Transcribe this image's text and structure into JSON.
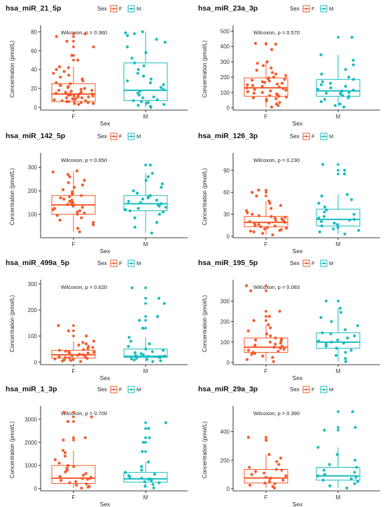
{
  "colors": {
    "F": "#F8592A",
    "M": "#18BCC0",
    "axis": "#000000",
    "text": "#222222"
  },
  "legend": {
    "title": "Sex",
    "items": [
      "F",
      "M"
    ]
  },
  "chart_data": [
    {
      "type": "box",
      "title": "hsa_miR_21_5p",
      "xlabel": "Sex",
      "ylabel": "Concentration (pmol/L)",
      "categories": [
        "F",
        "M"
      ],
      "annotation": "Wilcoxon, p = 0.360",
      "ylim": [
        -3,
        84
      ],
      "yticks": [
        "0",
        "20",
        "40",
        "60",
        "80"
      ],
      "ytick_values": [
        0,
        20,
        40,
        60,
        80
      ],
      "boxes": [
        {
          "name": "F",
          "whisker_low": 3,
          "q1": 6,
          "median": 14,
          "q3": 25,
          "whisker_high": 43,
          "outliers": [
            50,
            55,
            64,
            70,
            75,
            78
          ],
          "points": [
            3,
            4,
            4,
            5,
            5,
            6,
            6,
            7,
            7,
            8,
            8,
            9,
            9,
            10,
            10,
            11,
            11,
            12,
            12,
            13,
            13,
            13,
            14,
            14,
            14,
            15,
            15,
            16,
            16,
            17,
            18,
            18,
            19,
            20,
            21,
            22,
            23,
            24,
            25,
            26,
            28,
            30,
            32,
            34,
            36,
            38,
            40,
            42,
            43,
            50,
            55,
            64,
            70,
            75,
            78
          ]
        },
        {
          "name": "M",
          "whisker_low": 0,
          "q1": 7,
          "median": 18,
          "q3": 47,
          "whisker_high": 80,
          "outliers": [],
          "points": [
            0,
            1,
            2,
            3,
            4,
            5,
            6,
            7,
            8,
            10,
            11,
            13,
            15,
            17,
            19,
            21,
            24,
            26,
            28,
            30,
            33,
            36,
            40,
            44,
            47,
            52,
            58,
            64,
            69,
            72,
            76,
            78,
            80,
            79
          ]
        }
      ]
    },
    {
      "type": "box",
      "title": "hsa_miR_23a_3p",
      "xlabel": "Sex",
      "ylabel": "Concentration (pmol/L)",
      "categories": [
        "F",
        "M"
      ],
      "annotation": "Wilcoxon, p = 0.570",
      "ylim": [
        -15,
        520
      ],
      "yticks": [
        "0",
        "100",
        "200",
        "300",
        "400",
        "500"
      ],
      "ytick_values": [
        0,
        100,
        200,
        300,
        400,
        500
      ],
      "boxes": [
        {
          "name": "F",
          "whisker_low": 5,
          "q1": 75,
          "median": 130,
          "q3": 195,
          "whisker_high": 300,
          "outliers": [
            415,
            420
          ],
          "points": [
            5,
            15,
            25,
            35,
            45,
            55,
            60,
            65,
            70,
            75,
            80,
            85,
            90,
            95,
            100,
            105,
            110,
            115,
            120,
            125,
            130,
            135,
            140,
            145,
            150,
            155,
            160,
            165,
            170,
            175,
            180,
            185,
            190,
            195,
            200,
            210,
            220,
            230,
            245,
            260,
            275,
            290,
            300,
            380,
            415,
            420
          ]
        },
        {
          "name": "M",
          "whisker_low": 5,
          "q1": 75,
          "median": 110,
          "q3": 185,
          "whisker_high": 345,
          "outliers": [
            460
          ],
          "points": [
            5,
            15,
            25,
            40,
            55,
            65,
            75,
            80,
            90,
            95,
            100,
            105,
            110,
            115,
            120,
            130,
            140,
            150,
            160,
            170,
            185,
            200,
            220,
            250,
            280,
            310,
            345,
            460
          ]
        }
      ]
    },
    {
      "type": "box",
      "title": "hsa_miR_142_5p",
      "xlabel": "Sex",
      "ylabel": "Concentration (pmol/L)",
      "categories": [
        "F",
        "M"
      ],
      "annotation": "Wilcoxon, p = 0.650",
      "ylim": [
        0,
        350
      ],
      "yticks": [
        "100",
        "200",
        "300"
      ],
      "ytick_values": [
        100,
        200,
        300
      ],
      "boxes": [
        {
          "name": "F",
          "whisker_low": 25,
          "q1": 100,
          "median": 140,
          "q3": 180,
          "whisker_high": 285,
          "outliers": [],
          "points": [
            25,
            40,
            55,
            65,
            75,
            85,
            95,
            100,
            105,
            110,
            115,
            120,
            125,
            130,
            135,
            140,
            142,
            145,
            150,
            155,
            160,
            165,
            170,
            175,
            180,
            185,
            195,
            205,
            215,
            225,
            235,
            245,
            260,
            270,
            280,
            285
          ]
        },
        {
          "name": "M",
          "whisker_low": 20,
          "q1": 115,
          "median": 145,
          "q3": 180,
          "whisker_high": 275,
          "outliers": [
            310
          ],
          "points": [
            20,
            45,
            65,
            85,
            100,
            110,
            115,
            120,
            125,
            130,
            135,
            140,
            145,
            150,
            155,
            160,
            165,
            170,
            175,
            180,
            190,
            200,
            215,
            230,
            245,
            260,
            275,
            310
          ]
        }
      ]
    },
    {
      "type": "box",
      "title": "hsa_miR_126_3p",
      "xlabel": "Sex",
      "ylabel": "Concentration (pmol/L)",
      "categories": [
        "F",
        "M"
      ],
      "annotation": "Wilcoxon, p = 0.230",
      "ylim": [
        -2,
        110
      ],
      "yticks": [
        "0",
        "30",
        "60",
        "90"
      ],
      "ytick_values": [
        0,
        30,
        60,
        90
      ],
      "boxes": [
        {
          "name": "F",
          "whisker_low": 2,
          "q1": 13,
          "median": 19,
          "q3": 27,
          "whisker_high": 48,
          "outliers": [
            55,
            60,
            63
          ],
          "points": [
            2,
            4,
            6,
            7,
            8,
            9,
            10,
            11,
            12,
            13,
            14,
            15,
            16,
            17,
            18,
            19,
            20,
            21,
            22,
            23,
            24,
            25,
            26,
            27,
            28,
            30,
            32,
            35,
            38,
            42,
            45,
            48,
            55,
            60,
            63
          ]
        },
        {
          "name": "M",
          "whisker_low": 3,
          "q1": 14,
          "median": 23,
          "q3": 37,
          "whisker_high": 57,
          "outliers": [
            85,
            90,
            98
          ],
          "points": [
            3,
            6,
            8,
            10,
            12,
            14,
            16,
            18,
            20,
            22,
            23,
            25,
            27,
            30,
            33,
            36,
            40,
            45,
            50,
            55,
            57,
            85,
            90,
            98
          ]
        }
      ]
    },
    {
      "type": "box",
      "title": "hsa_miR_499a_5p",
      "xlabel": "Sex",
      "ylabel": "Concentration (pmol/L)",
      "categories": [
        "F",
        "M"
      ],
      "annotation": "Wilcoxon, p = 0.620",
      "ylim": [
        -10,
        305
      ],
      "yticks": [
        "0",
        "100",
        "200",
        "300"
      ],
      "ytick_values": [
        0,
        100,
        200,
        300
      ],
      "boxes": [
        {
          "name": "F",
          "whisker_low": 2,
          "q1": 15,
          "median": 28,
          "q3": 45,
          "whisker_high": 80,
          "outliers": [
            100,
            120,
            140
          ],
          "points": [
            2,
            4,
            6,
            8,
            10,
            12,
            14,
            16,
            18,
            20,
            22,
            24,
            26,
            28,
            30,
            32,
            34,
            36,
            38,
            40,
            42,
            45,
            48,
            52,
            56,
            60,
            65,
            70,
            75,
            80,
            100,
            120,
            140
          ]
        },
        {
          "name": "M",
          "whisker_low": 2,
          "q1": 18,
          "median": 22,
          "q3": 50,
          "whisker_high": 95,
          "outliers": [
            130,
            160,
            175,
            225,
            245,
            285
          ],
          "points": [
            2,
            5,
            8,
            10,
            12,
            15,
            18,
            20,
            21,
            22,
            23,
            25,
            28,
            32,
            36,
            40,
            45,
            50,
            60,
            70,
            80,
            95,
            130,
            160,
            175,
            225,
            245,
            285
          ]
        }
      ]
    },
    {
      "type": "box",
      "title": "hsa_miR_195_5p",
      "xlabel": "Sex",
      "ylabel": "Concentration (pmol/L)",
      "categories": [
        "F",
        "M"
      ],
      "annotation": "Wilcoxon, p = 0.083",
      "ylim": [
        -10,
        390
      ],
      "yticks": [
        "0",
        "100",
        "200",
        "300"
      ],
      "ytick_values": [
        0,
        100,
        200,
        300
      ],
      "boxes": [
        {
          "name": "F",
          "whisker_low": 5,
          "q1": 50,
          "median": 75,
          "q3": 120,
          "whisker_high": 185,
          "outliers": [
            205,
            225,
            250,
            350,
            375
          ],
          "points": [
            5,
            15,
            25,
            32,
            40,
            45,
            50,
            55,
            60,
            65,
            70,
            75,
            80,
            85,
            90,
            95,
            100,
            105,
            110,
            115,
            120,
            130,
            140,
            155,
            170,
            185,
            205,
            225,
            250,
            350,
            375
          ]
        },
        {
          "name": "M",
          "whisker_low": 5,
          "q1": 70,
          "median": 100,
          "q3": 145,
          "whisker_high": 265,
          "outliers": [
            300
          ],
          "points": [
            5,
            20,
            35,
            50,
            60,
            70,
            80,
            90,
            95,
            100,
            105,
            110,
            120,
            130,
            140,
            145,
            160,
            180,
            200,
            220,
            245,
            265,
            300
          ]
        }
      ]
    },
    {
      "type": "box",
      "title": "hsa_miR_1_3p",
      "xlabel": "Sex",
      "ylabel": "Concentration (pmol/L)",
      "categories": [
        "F",
        "M"
      ],
      "annotation": "Wilcoxon, p = 0.700",
      "ylim": [
        -100,
        3450
      ],
      "yticks": [
        "0",
        "1000",
        "2000",
        "3000"
      ],
      "ytick_values": [
        0,
        1000,
        2000,
        3000
      ],
      "boxes": [
        {
          "name": "F",
          "whisker_low": 20,
          "q1": 220,
          "median": 450,
          "q3": 1000,
          "whisker_high": 1650,
          "outliers": [
            2100,
            2200,
            2900,
            3100,
            3300
          ],
          "points": [
            20,
            60,
            100,
            150,
            200,
            250,
            300,
            350,
            400,
            430,
            450,
            480,
            520,
            580,
            650,
            720,
            800,
            880,
            950,
            1000,
            1100,
            1250,
            1400,
            1550,
            1650,
            2100,
            2200,
            2900,
            3100,
            3300
          ]
        },
        {
          "name": "M",
          "whisker_low": 30,
          "q1": 280,
          "median": 420,
          "q3": 700,
          "whisker_high": 1150,
          "outliers": [
            1600,
            2000,
            2200,
            2600,
            2850
          ],
          "points": [
            30,
            100,
            180,
            250,
            300,
            350,
            400,
            420,
            450,
            500,
            560,
            620,
            700,
            800,
            950,
            1150,
            1600,
            2000,
            2200,
            2600,
            2850
          ]
        }
      ]
    },
    {
      "type": "box",
      "title": "hsa_miR_29a_3p",
      "xlabel": "Sex",
      "ylabel": "Concentration (pmol/L)",
      "categories": [
        "F",
        "M"
      ],
      "annotation": "Wilcoxon, p = 0.390",
      "ylim": [
        -15,
        560
      ],
      "yticks": [
        "0",
        "200",
        "400"
      ],
      "ytick_values": [
        0,
        200,
        400
      ],
      "boxes": [
        {
          "name": "F",
          "whisker_low": 5,
          "q1": 40,
          "median": 75,
          "q3": 135,
          "whisker_high": 240,
          "outliers": [
            340,
            360
          ],
          "points": [
            5,
            15,
            25,
            35,
            40,
            50,
            60,
            70,
            75,
            80,
            90,
            100,
            110,
            120,
            130,
            135,
            150,
            170,
            190,
            215,
            240,
            340,
            360
          ]
        },
        {
          "name": "M",
          "whisker_low": 5,
          "q1": 60,
          "median": 90,
          "q3": 150,
          "whisker_high": 290,
          "outliers": [
            410,
            430,
            540
          ],
          "points": [
            5,
            20,
            35,
            50,
            60,
            70,
            80,
            90,
            100,
            115,
            130,
            150,
            170,
            200,
            240,
            290,
            410,
            430,
            540
          ]
        }
      ]
    }
  ]
}
